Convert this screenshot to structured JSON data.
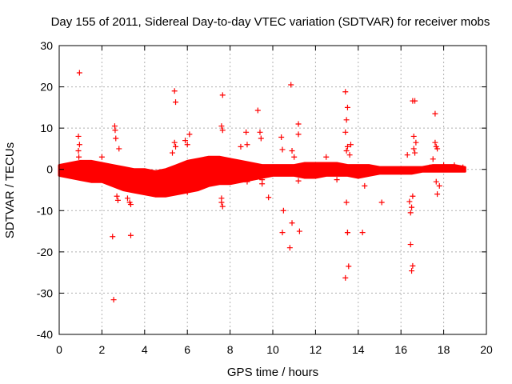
{
  "chart_data": {
    "type": "scatter",
    "title": "Day 155 of 2011, Sidereal Day-to-day VTEC variation (SDTVAR) for receiver mobs",
    "xlabel": "GPS time / hours",
    "ylabel": "SDTVAR / TECUs",
    "xlim": [
      0,
      20
    ],
    "ylim": [
      -40,
      30
    ],
    "xticks": [
      0,
      2,
      4,
      6,
      8,
      10,
      12,
      14,
      16,
      18,
      20
    ],
    "yticks": [
      -40,
      -30,
      -20,
      -10,
      0,
      10,
      20,
      30
    ],
    "xtick_labels": [
      "0",
      "2",
      "4",
      "6",
      "8",
      "10",
      "12",
      "14",
      "16",
      "18",
      "20"
    ],
    "ytick_labels": [
      "-40",
      "-30",
      "-20",
      "-10",
      "0",
      "10",
      "20",
      "30"
    ],
    "grid": true,
    "marker": "+",
    "color": "#ff0000",
    "band": {
      "x": [
        0.0,
        0.5,
        1.0,
        1.5,
        2.0,
        2.5,
        3.0,
        3.5,
        4.0,
        4.5,
        5.0,
        5.5,
        6.0,
        6.5,
        7.0,
        7.5,
        8.0,
        8.5,
        9.0,
        9.5,
        10.0,
        10.5,
        11.0,
        11.5,
        12.0,
        12.5,
        13.0,
        13.5,
        14.0,
        14.5,
        15.0,
        15.5,
        16.0,
        16.5,
        17.0,
        17.5,
        18.0,
        18.5,
        19.0
      ],
      "lower": [
        -1.5,
        -2.0,
        -2.5,
        -3.0,
        -3.0,
        -4.0,
        -5.0,
        -5.5,
        -6.0,
        -6.5,
        -6.5,
        -6.0,
        -5.5,
        -5.0,
        -4.0,
        -3.5,
        -3.5,
        -3.0,
        -2.5,
        -2.0,
        -1.5,
        -1.5,
        -1.5,
        -2.0,
        -2.0,
        -1.5,
        -1.5,
        -1.5,
        -2.0,
        -1.5,
        -1.0,
        -1.0,
        -1.0,
        -1.0,
        -0.5,
        -0.5,
        -0.5,
        -0.5,
        -0.5
      ],
      "upper": [
        1.0,
        1.5,
        2.0,
        2.0,
        1.5,
        1.0,
        0.5,
        0.0,
        0.0,
        -0.5,
        0.0,
        1.0,
        2.0,
        2.5,
        3.0,
        3.0,
        2.5,
        2.0,
        1.5,
        1.0,
        1.0,
        1.0,
        1.0,
        1.5,
        1.5,
        1.5,
        1.5,
        1.0,
        1.0,
        1.0,
        0.5,
        0.5,
        0.5,
        0.5,
        0.5,
        1.0,
        1.0,
        1.0,
        0.5
      ]
    },
    "series": [
      {
        "name": "SDTVAR",
        "points": [
          [
            0.95,
            23.4
          ],
          [
            0.9,
            8.0
          ],
          [
            0.95,
            6.0
          ],
          [
            0.9,
            4.5
          ],
          [
            0.92,
            3.0
          ],
          [
            2.0,
            3.0
          ],
          [
            2.5,
            -16.3
          ],
          [
            2.55,
            -31.6
          ],
          [
            2.6,
            10.5
          ],
          [
            2.62,
            9.5
          ],
          [
            2.65,
            7.5
          ],
          [
            2.8,
            5.0
          ],
          [
            2.7,
            -6.5
          ],
          [
            2.75,
            -7.5
          ],
          [
            3.35,
            -16.0
          ],
          [
            3.3,
            -8.0
          ],
          [
            3.35,
            -8.5
          ],
          [
            3.2,
            -7.0
          ],
          [
            5.4,
            19.0
          ],
          [
            5.45,
            16.3
          ],
          [
            5.4,
            6.5
          ],
          [
            5.45,
            5.5
          ],
          [
            5.3,
            4.0
          ],
          [
            5.9,
            7.0
          ],
          [
            6.1,
            8.5
          ],
          [
            6.0,
            6.0
          ],
          [
            6.1,
            -4.5
          ],
          [
            6.0,
            -5.5
          ],
          [
            7.65,
            18.0
          ],
          [
            7.6,
            10.5
          ],
          [
            7.65,
            9.5
          ],
          [
            7.6,
            -8.0
          ],
          [
            7.65,
            -9.0
          ],
          [
            7.6,
            -7.0
          ],
          [
            8.5,
            5.5
          ],
          [
            8.75,
            9.0
          ],
          [
            8.8,
            6.0
          ],
          [
            8.7,
            -2.5
          ],
          [
            8.8,
            -3.0
          ],
          [
            9.3,
            14.3
          ],
          [
            9.4,
            9.0
          ],
          [
            9.45,
            7.5
          ],
          [
            9.5,
            -2.5
          ],
          [
            9.5,
            -3.5
          ],
          [
            9.8,
            -6.8
          ],
          [
            10.4,
            7.8
          ],
          [
            10.45,
            4.8
          ],
          [
            10.5,
            -10.0
          ],
          [
            10.45,
            -15.3
          ],
          [
            10.85,
            20.5
          ],
          [
            10.8,
            -19.0
          ],
          [
            10.9,
            -13.0
          ],
          [
            10.9,
            4.5
          ],
          [
            11.0,
            3.0
          ],
          [
            11.2,
            11.0
          ],
          [
            11.2,
            8.5
          ],
          [
            11.25,
            -15.0
          ],
          [
            11.2,
            -2.8
          ],
          [
            12.5,
            3.0
          ],
          [
            13.4,
            18.8
          ],
          [
            13.45,
            12.0
          ],
          [
            13.5,
            15.0
          ],
          [
            13.4,
            9.0
          ],
          [
            13.45,
            4.5
          ],
          [
            13.5,
            5.5
          ],
          [
            13.45,
            -8.0
          ],
          [
            13.5,
            -15.3
          ],
          [
            13.4,
            -26.3
          ],
          [
            13.55,
            -23.5
          ],
          [
            13.5,
            -15.3
          ],
          [
            13.65,
            6.0
          ],
          [
            13.6,
            3.5
          ],
          [
            13.0,
            -2.5
          ],
          [
            14.2,
            -15.3
          ],
          [
            14.3,
            -4.0
          ],
          [
            15.1,
            -8.0
          ],
          [
            16.3,
            3.5
          ],
          [
            16.4,
            -7.8
          ],
          [
            16.45,
            -10.5
          ],
          [
            16.5,
            -9.2
          ],
          [
            16.55,
            -6.5
          ],
          [
            16.45,
            -18.2
          ],
          [
            16.55,
            -23.4
          ],
          [
            16.5,
            -24.6
          ],
          [
            16.55,
            16.6
          ],
          [
            16.65,
            16.6
          ],
          [
            16.6,
            8.0
          ],
          [
            16.7,
            6.5
          ],
          [
            16.6,
            5.0
          ],
          [
            16.65,
            4.0
          ],
          [
            17.35,
            0.5
          ],
          [
            17.5,
            2.5
          ],
          [
            17.6,
            13.5
          ],
          [
            17.6,
            6.5
          ],
          [
            17.65,
            5.5
          ],
          [
            17.7,
            5.0
          ],
          [
            17.7,
            -6.0
          ],
          [
            17.65,
            -3.0
          ],
          [
            17.8,
            -4.0
          ],
          [
            18.0,
            1.0
          ],
          [
            18.5,
            1.0
          ],
          [
            18.9,
            0.5
          ]
        ]
      }
    ]
  }
}
